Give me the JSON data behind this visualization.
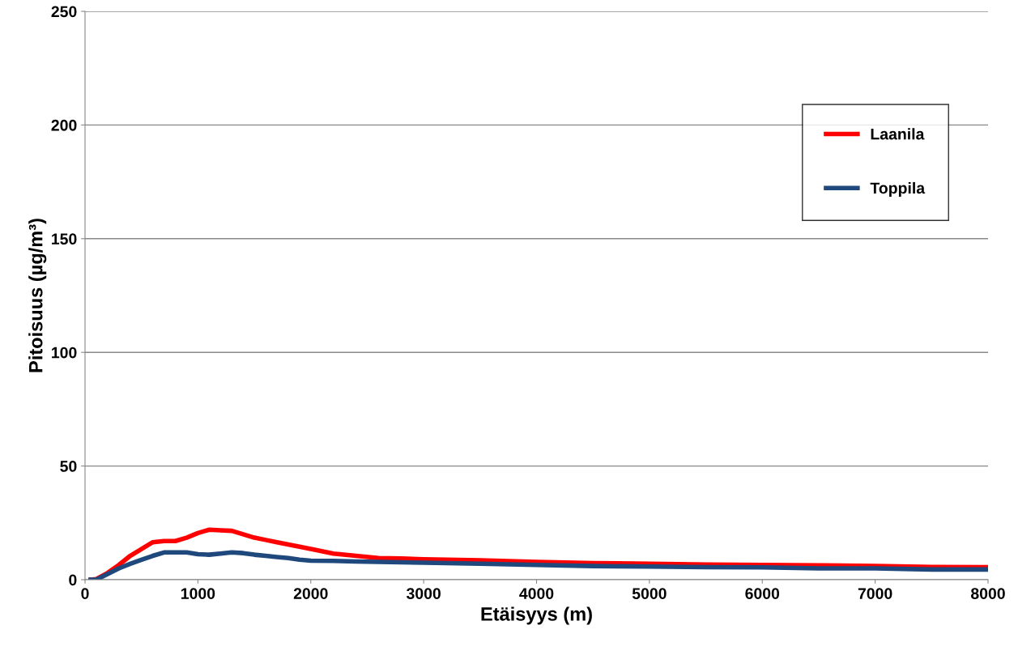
{
  "chart_data": {
    "type": "line",
    "xlabel": "Etäisyys (m)",
    "ylabel": "Pitoisuus (µg/m³)",
    "xlim": [
      0,
      8000
    ],
    "xticks": [
      0,
      1000,
      2000,
      3000,
      4000,
      5000,
      6000,
      7000,
      8000
    ],
    "ylim": [
      0,
      250
    ],
    "yticks": [
      0,
      50,
      100,
      150,
      200,
      250
    ],
    "grid": "y",
    "legend": "top right",
    "marker": "none",
    "line_style": "solid",
    "series": [
      {
        "name": "Laanila",
        "color": "#ff0000",
        "x": [
          50,
          100,
          200,
          300,
          400,
          500,
          600,
          700,
          800,
          900,
          1000,
          1100,
          1200,
          1300,
          1400,
          1500,
          1600,
          1700,
          1800,
          1900,
          2000,
          2200,
          2400,
          2600,
          2800,
          3000,
          3500,
          4000,
          4500,
          5000,
          5500,
          6000,
          6500,
          7000,
          7500,
          8000
        ],
        "values": [
          0,
          0.3,
          3,
          6.5,
          10.5,
          13.5,
          16.5,
          17,
          17,
          18.5,
          20.5,
          22,
          21.7,
          21.5,
          20,
          18.5,
          17.5,
          16.5,
          15.5,
          14.5,
          13.5,
          11.5,
          10.5,
          9.5,
          9.3,
          9,
          8.5,
          7.8,
          7.3,
          7,
          6.7,
          6.5,
          6.3,
          6,
          5.6,
          5.5
        ]
      },
      {
        "name": "Toppila",
        "color": "#1f497d",
        "x": [
          50,
          100,
          200,
          300,
          400,
          500,
          600,
          700,
          800,
          900,
          1000,
          1100,
          1200,
          1300,
          1400,
          1500,
          1600,
          1700,
          1800,
          1900,
          2000,
          2200,
          2400,
          2600,
          3000,
          3500,
          4000,
          4500,
          5000,
          5500,
          6000,
          6500,
          7000,
          7500,
          8000
        ],
        "values": [
          0,
          0,
          2.5,
          5,
          7,
          8.8,
          10.5,
          12,
          12,
          12,
          11.2,
          11,
          11.5,
          12,
          11.7,
          11,
          10.5,
          10,
          9.5,
          8.8,
          8.4,
          8.3,
          8,
          7.8,
          7.5,
          7,
          6.5,
          6,
          5.8,
          5.5,
          5.4,
          5,
          5,
          4.5,
          4.5
        ]
      }
    ]
  }
}
